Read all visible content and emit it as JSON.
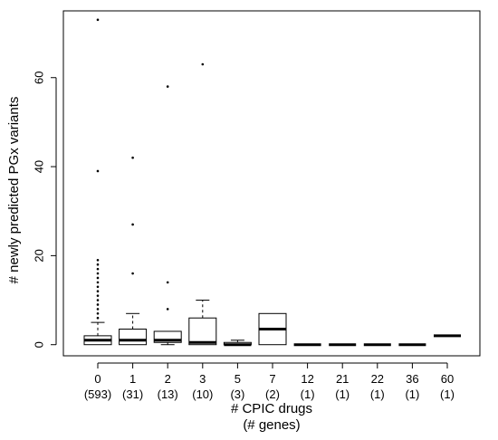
{
  "chart_data": {
    "type": "boxplot",
    "xlabel": "# CPIC drugs",
    "xlabel2": "(# genes)",
    "ylabel": "# newly predicted PGx variants",
    "ylim": [
      -2.5,
      75
    ],
    "yticks": [
      0,
      20,
      40,
      60
    ],
    "groups": [
      {
        "label": "0",
        "n": "(593)",
        "q1": 0,
        "median": 1,
        "q3": 2,
        "whisker_low": 0,
        "whisker_high": 5,
        "outliers": [
          6,
          7,
          8,
          9,
          10,
          11,
          12,
          13,
          14,
          15,
          16,
          17,
          18,
          19,
          39,
          73
        ]
      },
      {
        "label": "1",
        "n": "(31)",
        "q1": 0,
        "median": 1,
        "q3": 3.5,
        "whisker_low": 0,
        "whisker_high": 7,
        "outliers": [
          16,
          27,
          42
        ]
      },
      {
        "label": "2",
        "n": "(13)",
        "q1": 0.5,
        "median": 1,
        "q3": 3,
        "whisker_low": 0,
        "whisker_high": 3,
        "outliers": [
          8,
          14,
          58
        ]
      },
      {
        "label": "3",
        "n": "(10)",
        "q1": 0,
        "median": 0.5,
        "q3": 6,
        "whisker_low": 0,
        "whisker_high": 10,
        "outliers": [
          63
        ]
      },
      {
        "label": "5",
        "n": "(3)",
        "q1": 0,
        "median": 0,
        "q3": 0.5,
        "whisker_low": 0,
        "whisker_high": 1,
        "outliers": []
      },
      {
        "label": "7",
        "n": "(2)",
        "q1": 0,
        "median": 3.5,
        "q3": 7,
        "whisker_low": 0,
        "whisker_high": 7,
        "outliers": []
      },
      {
        "label": "12",
        "n": "(1)",
        "q1": 0,
        "median": 0,
        "q3": 0,
        "whisker_low": 0,
        "whisker_high": 0,
        "outliers": []
      },
      {
        "label": "21",
        "n": "(1)",
        "q1": 0,
        "median": 0,
        "q3": 0,
        "whisker_low": 0,
        "whisker_high": 0,
        "outliers": []
      },
      {
        "label": "22",
        "n": "(1)",
        "q1": 0,
        "median": 0,
        "q3": 0,
        "whisker_low": 0,
        "whisker_high": 0,
        "outliers": []
      },
      {
        "label": "36",
        "n": "(1)",
        "q1": 0,
        "median": 0,
        "q3": 0,
        "whisker_low": 0,
        "whisker_high": 0,
        "outliers": []
      },
      {
        "label": "60",
        "n": "(1)",
        "q1": 2,
        "median": 2,
        "q3": 2,
        "whisker_low": 2,
        "whisker_high": 2,
        "outliers": []
      }
    ]
  }
}
